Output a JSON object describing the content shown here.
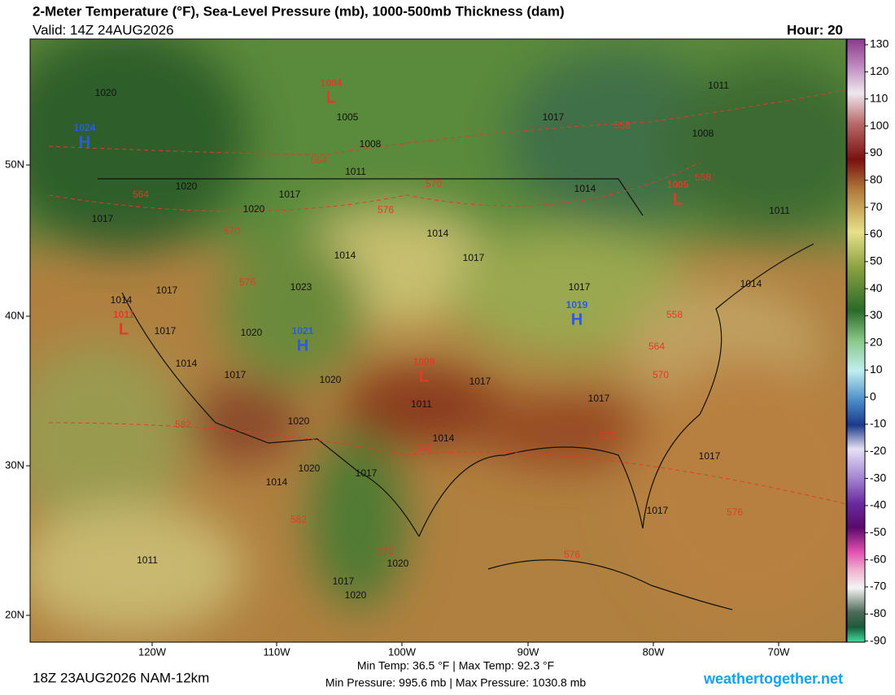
{
  "header": {
    "title": "2-Meter Temperature (°F), Sea-Level Pressure (mb), 1000-500mb Thickness (dam)",
    "valid": "Valid: 14Z 24AUG2026",
    "hour": "Hour: 20"
  },
  "colorbar": {
    "ticks": [
      130,
      120,
      110,
      100,
      90,
      80,
      70,
      60,
      50,
      40,
      30,
      20,
      10,
      0,
      -10,
      -20,
      -30,
      -40,
      -50,
      -60,
      -70,
      -80,
      -90
    ]
  },
  "axes": {
    "latitudes": [
      "50N",
      "40N",
      "30N",
      "20N"
    ],
    "longitudes": [
      "120W",
      "110W",
      "100W",
      "90W",
      "80W",
      "70W"
    ]
  },
  "pressure_centers": [
    {
      "symbol": "H",
      "pressure": "1024"
    },
    {
      "symbol": "L",
      "pressure": "1004"
    },
    {
      "symbol": "L",
      "pressure": "1011"
    },
    {
      "symbol": "H",
      "pressure": "1021"
    },
    {
      "symbol": "L",
      "pressure": "1009"
    },
    {
      "symbol": "H",
      "pressure": "1019"
    },
    {
      "symbol": "L",
      "pressure": "1005"
    }
  ],
  "isobar_labels": [
    "1020",
    "1005",
    "1008",
    "1011",
    "1017",
    "1011",
    "1008",
    "1020",
    "1017",
    "1020",
    "1017",
    "1014",
    "1017",
    "1014",
    "1023",
    "1014",
    "1011",
    "1014",
    "1017",
    "1017",
    "1020",
    "1017",
    "1014",
    "1017",
    "1020",
    "1017",
    "1017",
    "1011",
    "1020",
    "1014",
    "1017",
    "1020",
    "1017",
    "1014",
    "1017",
    "1011",
    "1020",
    "1017",
    "1020",
    "1014"
  ],
  "thickness_labels": [
    "558",
    "564",
    "570",
    "564",
    "558",
    "576",
    "570",
    "576",
    "558",
    "564",
    "570",
    "582",
    "582",
    "576",
    "582",
    "576",
    "576",
    "576"
  ],
  "footer": {
    "run": "18Z 23AUG2026 NAM-12km",
    "temp_stats": "Min Temp:  36.5 °F | Max Temp:  92.3 °F",
    "pressure_stats": "Min Pressure: 995.6 mb | Max Pressure: 1030.8 mb",
    "site": "weathertogether.net"
  }
}
